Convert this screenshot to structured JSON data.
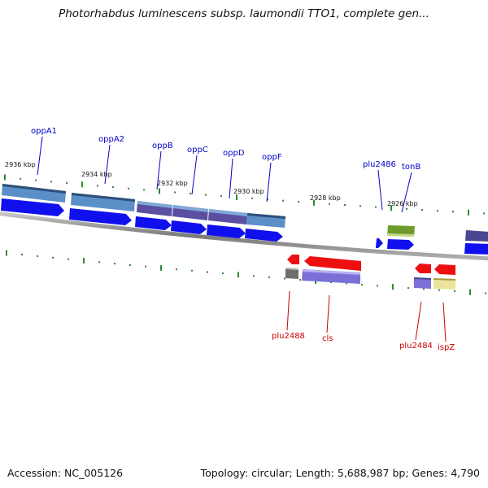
{
  "title": "Photorhabdus luminescens subsp. laumondii TTO1, complete gen...",
  "footer": {
    "accession": "Accession: NC_005126",
    "topology": "Topology: circular; Length: 5,688,987 bp; Genes: 4,790"
  },
  "colors": {
    "backbone": "#8a8a8a",
    "tick": "#2d8a2d",
    "forward_arrow": "#1010ee",
    "reverse_arrow": "#ee1010",
    "forward_label": "#0000cc",
    "reverse_label": "#cc0000",
    "cds_blue": "#5b8fc7",
    "cds_purple": "#5a4fa0",
    "cds_violet": "#7b70d8",
    "cds_gray": "#6e6e6e",
    "cds_green": "#6f9a2c",
    "cds_yellow": "#ece49a"
  },
  "scale_labels": [
    "2936 kbp",
    "2934 kbp",
    "2932 kbp",
    "2930 kbp",
    "2928 kbp",
    "2926 kbp"
  ],
  "forward_genes": [
    "oppA1",
    "oppA2",
    "oppB",
    "oppC",
    "oppD",
    "oppF",
    "plu2486",
    "tonB"
  ],
  "reverse_genes": [
    "plu2488",
    "cls",
    "plu2484",
    "ispZ"
  ]
}
